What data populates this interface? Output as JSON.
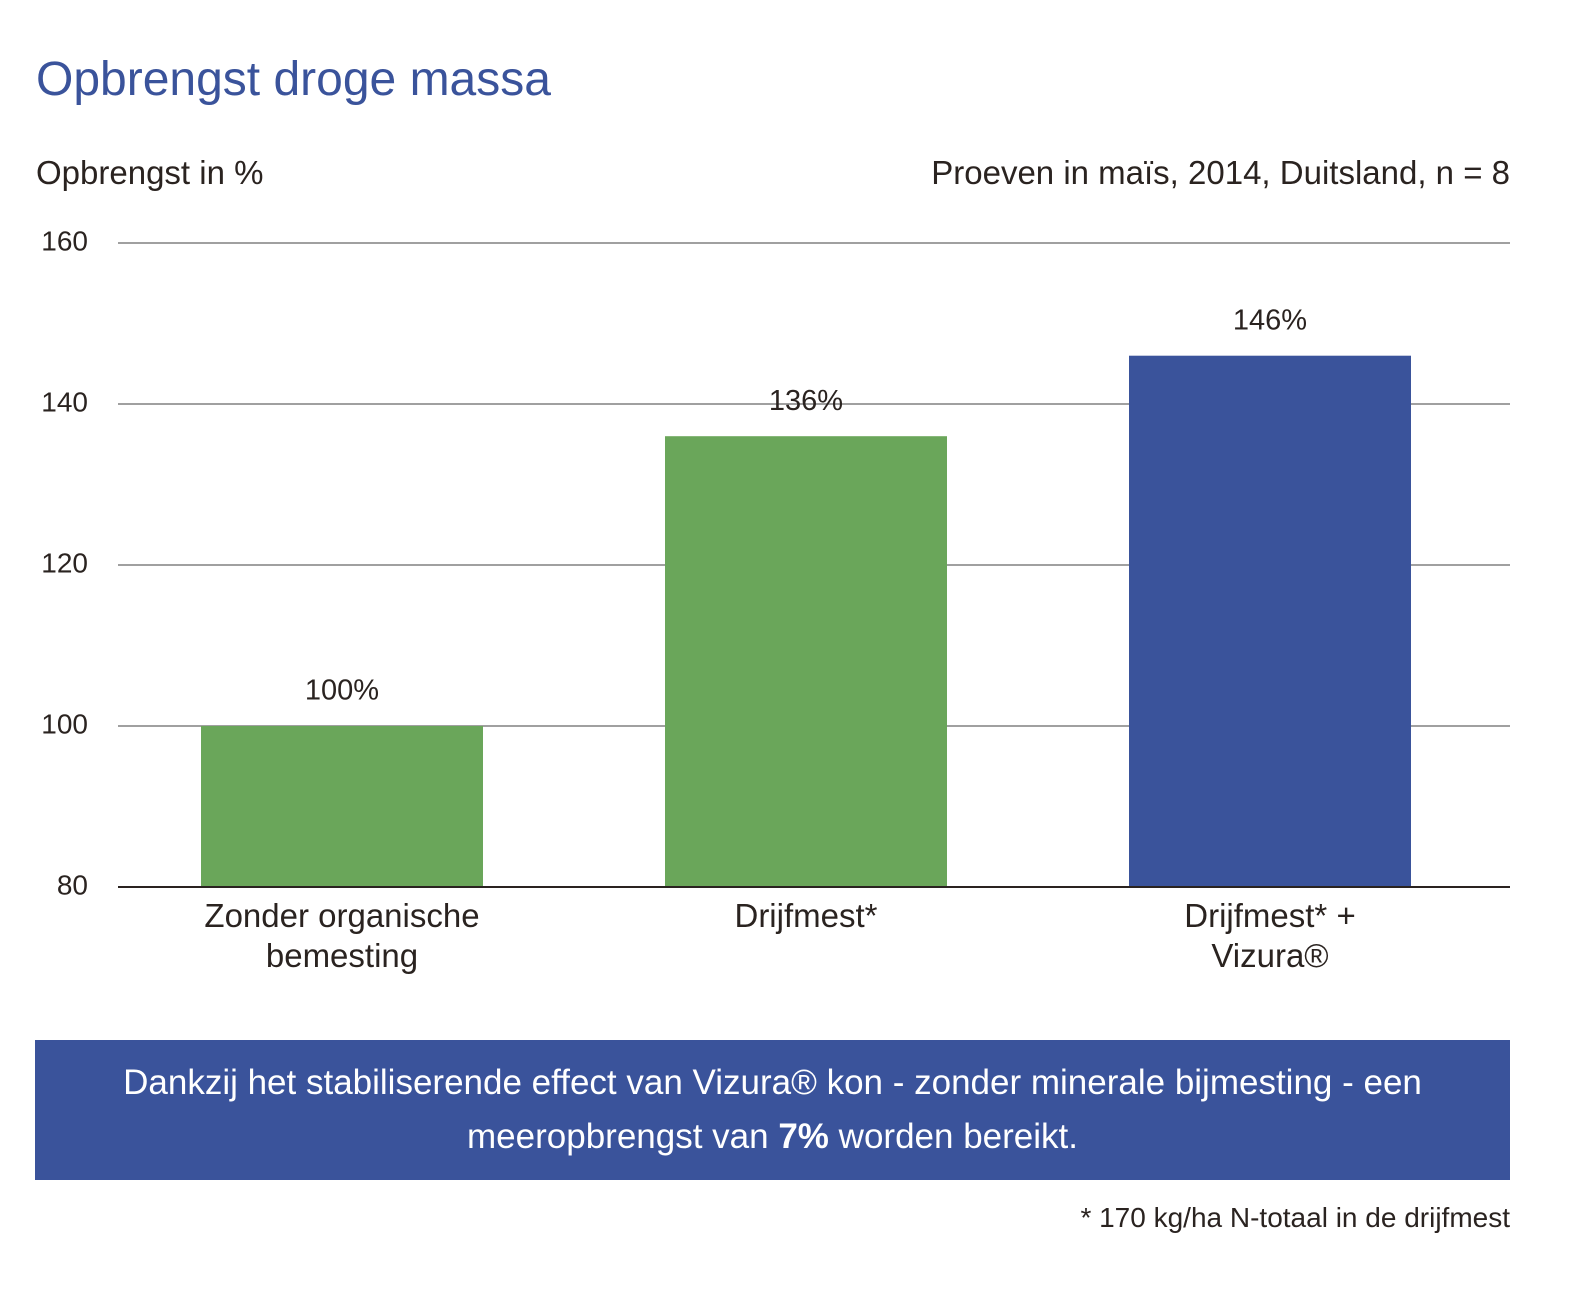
{
  "chart_data": {
    "type": "bar",
    "title": "Opbrengst droge massa",
    "y_label": "Opbrengst in %",
    "annotation": "Proeven in maïs, 2014, Duitsland, n = 8",
    "categories": [
      "Zonder organische bemesting",
      "Drijfmest*",
      "Drijfmest* + Vizura®"
    ],
    "values": [
      100,
      136,
      146
    ],
    "value_labels": [
      "100%",
      "136%",
      "146%"
    ],
    "colors": [
      "#6aa65a",
      "#6aa65a",
      "#3a539b"
    ],
    "ylim": [
      80,
      160
    ],
    "yticks": [
      80,
      100,
      120,
      140,
      160
    ],
    "grid": true
  },
  "callout": {
    "text_before": "Dankzij het stabiliserende effect van Vizura® kon - zonder minerale bijmesting - een meeropbrengst van",
    "highlight": "7%",
    "text_after": "worden bereikt."
  },
  "footnote": "* 170 kg/ha N-totaal in de drijfmest"
}
